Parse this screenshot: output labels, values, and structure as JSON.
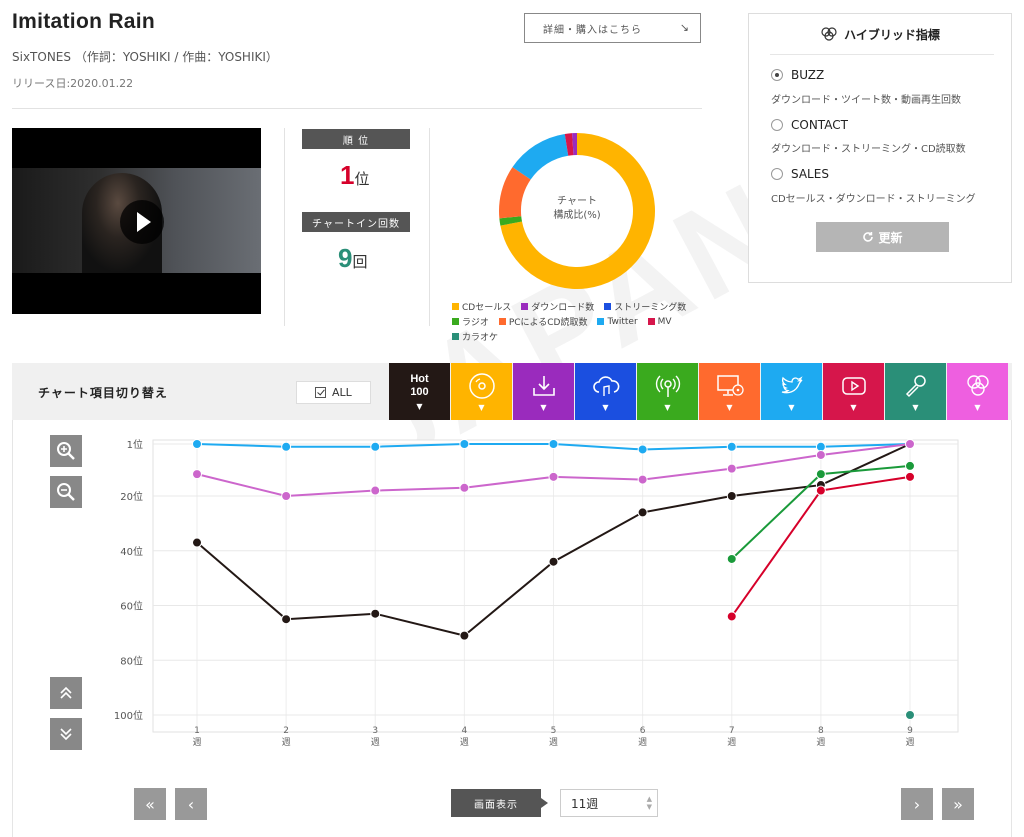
{
  "song": {
    "title": "Imitation Rain",
    "artist_line": "SixTONES （作詞：YOSHIKI / 作曲：YOSHIKI）",
    "release": "リリース日:2020.01.22"
  },
  "buy_button": {
    "label": "詳細・購入はこちら",
    "arrow": "↘"
  },
  "stats": {
    "rank_label": "順 位",
    "rank_value": "1",
    "rank_unit": "位",
    "rank_color": "#d6002a",
    "chartin_label": "チャートイン回数",
    "chartin_value": "9",
    "chartin_unit": "回",
    "chartin_color": "#2a8f78"
  },
  "donut": {
    "center_line1": "チャート",
    "center_line2": "構成比(%)",
    "legend": [
      {
        "label": "CDセールス",
        "color": "#ffb400"
      },
      {
        "label": "ダウンロード数",
        "color": "#9a2bbd"
      },
      {
        "label": "ストリーミング数",
        "color": "#1b4fe0"
      },
      {
        "label": "ラジオ",
        "color": "#3aaa1e"
      },
      {
        "label": "PCによるCD読取数",
        "color": "#ff6a2e"
      },
      {
        "label": "Twitter",
        "color": "#1eaaf1"
      },
      {
        "label": "MV",
        "color": "#d6164b"
      },
      {
        "label": "カラオケ",
        "color": "#2a8f78"
      }
    ],
    "slices": [
      {
        "name": "CDセールス",
        "value": 72,
        "color": "#ffb400"
      },
      {
        "name": "ラジオ",
        "value": 1.5,
        "color": "#3aaa1e"
      },
      {
        "name": "PCによるCD読取数",
        "value": 11,
        "color": "#ff6a2e"
      },
      {
        "name": "Twitter",
        "value": 13,
        "color": "#1eaaf1"
      },
      {
        "name": "MV",
        "value": 1.5,
        "color": "#d6164b"
      },
      {
        "name": "ダウンロード数",
        "value": 1,
        "color": "#9a2bbd"
      }
    ]
  },
  "hybrid": {
    "title": "ハイブリッド指標",
    "options": [
      {
        "label": "BUZZ",
        "desc": "ダウンロード・ツイート数・動画再生回数",
        "selected": true
      },
      {
        "label": "CONTACT",
        "desc": "ダウンロード・ストリーミング・CD読取数",
        "selected": false
      },
      {
        "label": "SALES",
        "desc": "CDセールス・ダウンロード・ストリーミング",
        "selected": false
      }
    ],
    "update_label": "更新",
    "update_icon": "refresh-icon"
  },
  "switcher": {
    "label": "チャート項目切り替え",
    "all_label": "ALL",
    "all_checked": true,
    "hot_line1": "Hot",
    "hot_line2": "100",
    "tabs": [
      {
        "name": "hot100",
        "color": "#231815"
      },
      {
        "name": "cd-sales",
        "icon": "disc-icon",
        "color": "#ffb400"
      },
      {
        "name": "download",
        "icon": "download-icon",
        "color": "#9a2bbd"
      },
      {
        "name": "streaming",
        "icon": "cloud-music-icon",
        "color": "#1b4fe0"
      },
      {
        "name": "radio",
        "icon": "radio-icon",
        "color": "#3aaa1e"
      },
      {
        "name": "pc-cd-read",
        "icon": "pc-disc-icon",
        "color": "#ff6a2e"
      },
      {
        "name": "twitter",
        "icon": "twitter-bird-icon",
        "color": "#1eaaf1"
      },
      {
        "name": "mv",
        "icon": "video-play-icon",
        "color": "#d6164b"
      },
      {
        "name": "karaoke",
        "icon": "microphone-icon",
        "color": "#2a8f78"
      },
      {
        "name": "hybrid",
        "icon": "rings-icon",
        "color": "#ee5fe0"
      }
    ]
  },
  "pager": {
    "display_label": "画面表示",
    "weeks_value": "11週",
    "first": "«",
    "prev": "‹",
    "next": "›",
    "last": "»"
  },
  "chart_data": {
    "type": "line",
    "x": [
      1,
      2,
      3,
      4,
      5,
      6,
      7,
      8,
      9
    ],
    "x_ticks": [
      {
        "num": "1",
        "unit": "週"
      },
      {
        "num": "2",
        "unit": "週"
      },
      {
        "num": "3",
        "unit": "週"
      },
      {
        "num": "4",
        "unit": "週"
      },
      {
        "num": "5",
        "unit": "週"
      },
      {
        "num": "6",
        "unit": "週"
      },
      {
        "num": "7",
        "unit": "週"
      },
      {
        "num": "8",
        "unit": "週"
      },
      {
        "num": "9",
        "unit": "週"
      }
    ],
    "y_ticks": [
      "1位",
      "20位",
      "40位",
      "60位",
      "80位",
      "100位"
    ],
    "y_tick_values": [
      1,
      20,
      40,
      60,
      80,
      100
    ],
    "ylim": [
      1,
      100
    ],
    "y_inverted": true,
    "grid": true,
    "series": [
      {
        "color": "#231815",
        "values": [
          37,
          65,
          63,
          71,
          44,
          26,
          20,
          16,
          1
        ]
      },
      {
        "color": "#1eaaf1",
        "values": [
          1,
          2,
          2,
          1,
          1,
          3,
          2,
          2,
          1
        ]
      },
      {
        "color": "#cc66cc",
        "values": [
          12,
          20,
          18,
          17,
          13,
          14,
          10,
          5,
          1
        ]
      },
      {
        "color": "#1a9a3a",
        "values": [
          null,
          null,
          null,
          null,
          null,
          null,
          43,
          12,
          9
        ]
      },
      {
        "color": "#d6002a",
        "values": [
          null,
          null,
          null,
          null,
          null,
          null,
          64,
          18,
          13
        ]
      },
      {
        "color": "#2a8f78",
        "values": [
          null,
          null,
          null,
          null,
          null,
          null,
          null,
          null,
          100
        ]
      }
    ]
  }
}
